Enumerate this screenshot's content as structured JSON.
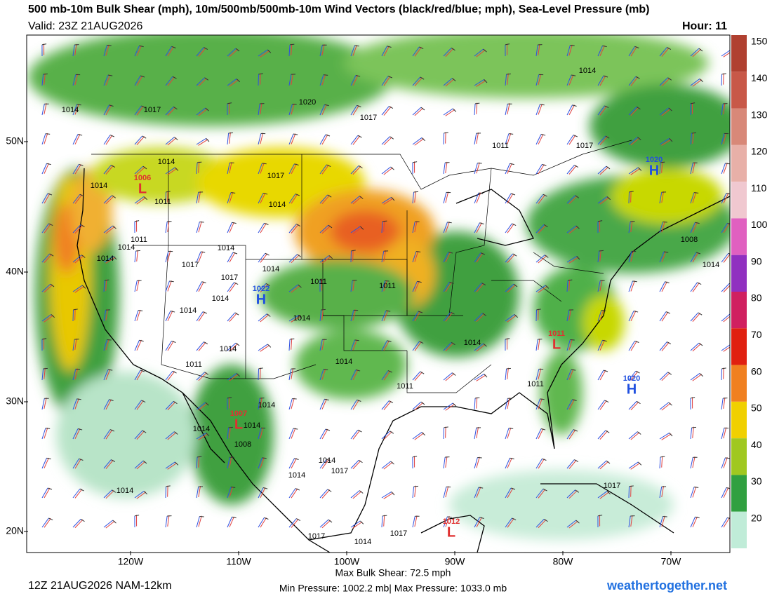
{
  "header": {
    "title": "500 mb-10m Bulk Shear (mph), 10m/500mb/500mb-10m Wind Vectors (black/red/blue; mph), Sea-Level Pressure (mb)",
    "valid": "Valid: 23Z 21AUG2026",
    "hour": "Hour: 11"
  },
  "colorbar": {
    "ticks": [
      150,
      140,
      130,
      120,
      110,
      100,
      90,
      80,
      70,
      60,
      50,
      40,
      30,
      20
    ],
    "colors": [
      "#b04030",
      "#c85848",
      "#d88878",
      "#e8b0a8",
      "#f0c8d0",
      "#e060c0",
      "#9030c0",
      "#d02060",
      "#e02010",
      "#f08020",
      "#f0d000",
      "#a0c820",
      "#30a040",
      "#c0ecd8"
    ]
  },
  "map": {
    "lat_labels": [
      "50N",
      "40N",
      "30N",
      "20N"
    ],
    "lon_labels": [
      "120W",
      "110W",
      "100W",
      "90W",
      "80W",
      "70W"
    ],
    "centers": [
      {
        "letter": "H",
        "pressure": 1020
      },
      {
        "letter": "H",
        "pressure": 1022
      },
      {
        "letter": "H",
        "pressure": 1020
      },
      {
        "letter": "L",
        "pressure": 1006
      },
      {
        "letter": "L",
        "pressure": 1011
      },
      {
        "letter": "L",
        "pressure": 1007
      },
      {
        "letter": "L",
        "pressure": 1012
      }
    ],
    "isobar_labels": [
      1014,
      1017,
      1020,
      1017,
      1014,
      1011,
      1017,
      1014,
      1014,
      1017,
      1014,
      1011,
      1014,
      1011,
      1014,
      1014,
      1017,
      1014,
      1011,
      1017,
      1014,
      1011,
      1014,
      1014,
      1014,
      1011,
      1014,
      1014,
      1011,
      1011,
      1014,
      1014,
      1008,
      1014,
      1014,
      1017,
      1014,
      1014,
      1017,
      1014,
      1017,
      1008,
      1017,
      1014
    ]
  },
  "footer": {
    "run": "12Z 21AUG2026 NAM-12km",
    "max_shear": "Max Bulk Shear:  72.5 mph",
    "pressure_range": "Min Pressure: 1002.2 mb| Max Pressure: 1033.0 mb",
    "site": "weathertogether.net"
  }
}
